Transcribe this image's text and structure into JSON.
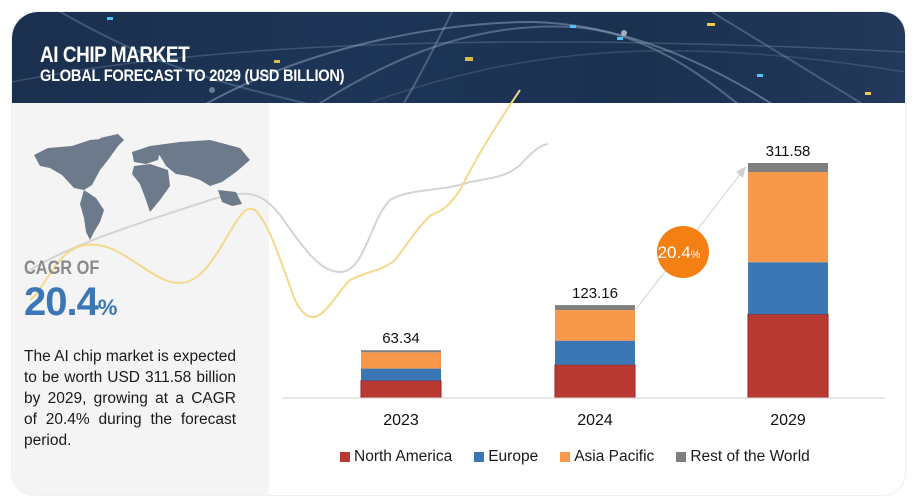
{
  "header": {
    "title": "AI CHIP MARKET",
    "subtitle": "GLOBAL FORECAST TO 2029 (USD BILLION)"
  },
  "left_panel": {
    "map_icon": "world-map-icon",
    "cagr_label": "CAGR OF",
    "cagr_number": "20.4",
    "cagr_percent": "%",
    "description": "The AI chip market is expected to be worth USD 311.58 billion by 2029, growing at a CAGR of 20.4% during the forecast period."
  },
  "colors": {
    "banner": "#1d3557",
    "north_america": "#b83a33",
    "europe": "#3a77b4",
    "asia_pacific": "#f7984a",
    "rest_of_world": "#7f7f7f",
    "cagr_badge": "#f47f13",
    "cagr_text": "#3a77b4"
  },
  "chart_data": {
    "type": "bar",
    "stacked": true,
    "title": "AI Chip Market, Global Forecast to 2029 (USD Billion)",
    "xlabel": "",
    "ylabel": "",
    "categories": [
      "2023",
      "2024",
      "2029"
    ],
    "totals": [
      "63.34",
      "123.16",
      "311.58"
    ],
    "total_values": [
      63.34,
      123.16,
      311.58
    ],
    "series": [
      {
        "name": "North America",
        "color": "#b83a33",
        "values": [
          23,
          44,
          111
        ]
      },
      {
        "name": "Europe",
        "color": "#3a77b4",
        "values": [
          16,
          32,
          69
        ]
      },
      {
        "name": "Asia Pacific",
        "color": "#f7984a",
        "values": [
          21.6,
          40.6,
          119.6
        ]
      },
      {
        "name": "Rest of the World",
        "color": "#7f7f7f",
        "values": [
          2.74,
          6.56,
          11.98
        ]
      }
    ],
    "ylim": [
      0,
      311.58
    ],
    "grid": false,
    "legend_position": "bottom",
    "annotation": {
      "text": "20.4",
      "suffix": "%",
      "type": "cagr-arrow",
      "from": "2024",
      "to": "2029"
    }
  }
}
